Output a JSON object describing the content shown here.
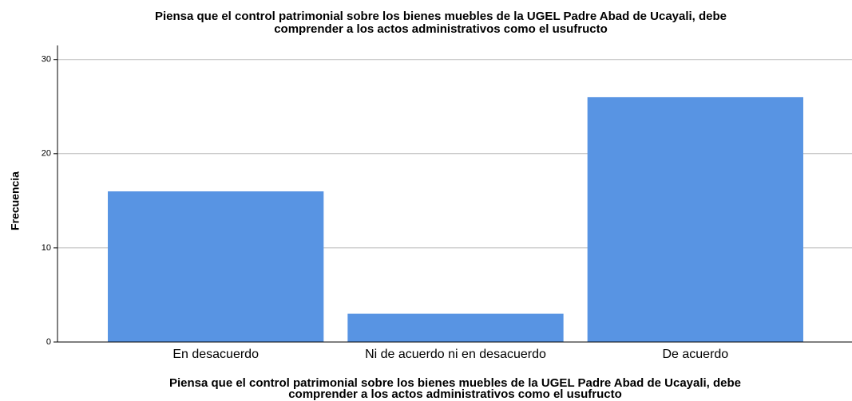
{
  "chart_data": {
    "type": "bar",
    "title": [
      "Piensa que el control patrimonial sobre los bienes muebles de la  UGEL Padre Abad de Ucayali, debe",
      "comprender a los actos administrativos como el usufructo"
    ],
    "x_label": [
      "Piensa que el control patrimonial sobre los bienes muebles de la  UGEL Padre Abad de Ucayali, debe",
      "comprender a los actos administrativos como el usufructo"
    ],
    "y_label": "Frecuencia",
    "categories": [
      "En desacuerdo",
      "Ni de acuerdo ni en desacuerdo",
      "De acuerdo"
    ],
    "values": [
      16,
      3,
      26
    ],
    "color": "#5894e3",
    "ylim": [
      0,
      31.5
    ],
    "yticks": [
      0,
      10,
      20,
      30
    ],
    "grid": true
  }
}
